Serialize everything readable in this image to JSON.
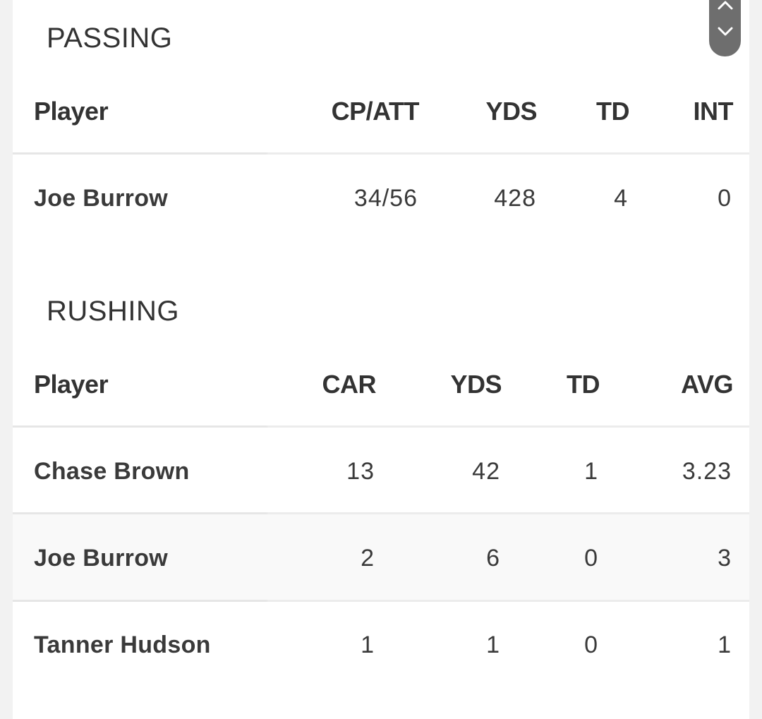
{
  "passing": {
    "title": "PASSING",
    "headers": {
      "player": "Player",
      "c1": "CP/ATT",
      "c2": "YDS",
      "c3": "TD",
      "c4": "INT"
    },
    "rows": [
      {
        "player": "Joe Burrow",
        "c1": "34/56",
        "c2": "428",
        "c3": "4",
        "c4": "0"
      }
    ]
  },
  "rushing": {
    "title": "RUSHING",
    "headers": {
      "player": "Player",
      "c1": "CAR",
      "c2": "YDS",
      "c3": "TD",
      "c4": "AVG"
    },
    "rows": [
      {
        "player": "Chase Brown",
        "c1": "13",
        "c2": "42",
        "c3": "1",
        "c4": "3.23"
      },
      {
        "player": "Joe Burrow",
        "c1": "2",
        "c2": "6",
        "c3": "0",
        "c4": "3"
      },
      {
        "player": "Tanner Hudson",
        "c1": "1",
        "c2": "1",
        "c3": "0",
        "c4": "1"
      }
    ]
  },
  "scroll_controls": {
    "up_icon": "chevron-up-icon",
    "down_icon": "chevron-down-icon",
    "color": "#6e6e6e"
  }
}
